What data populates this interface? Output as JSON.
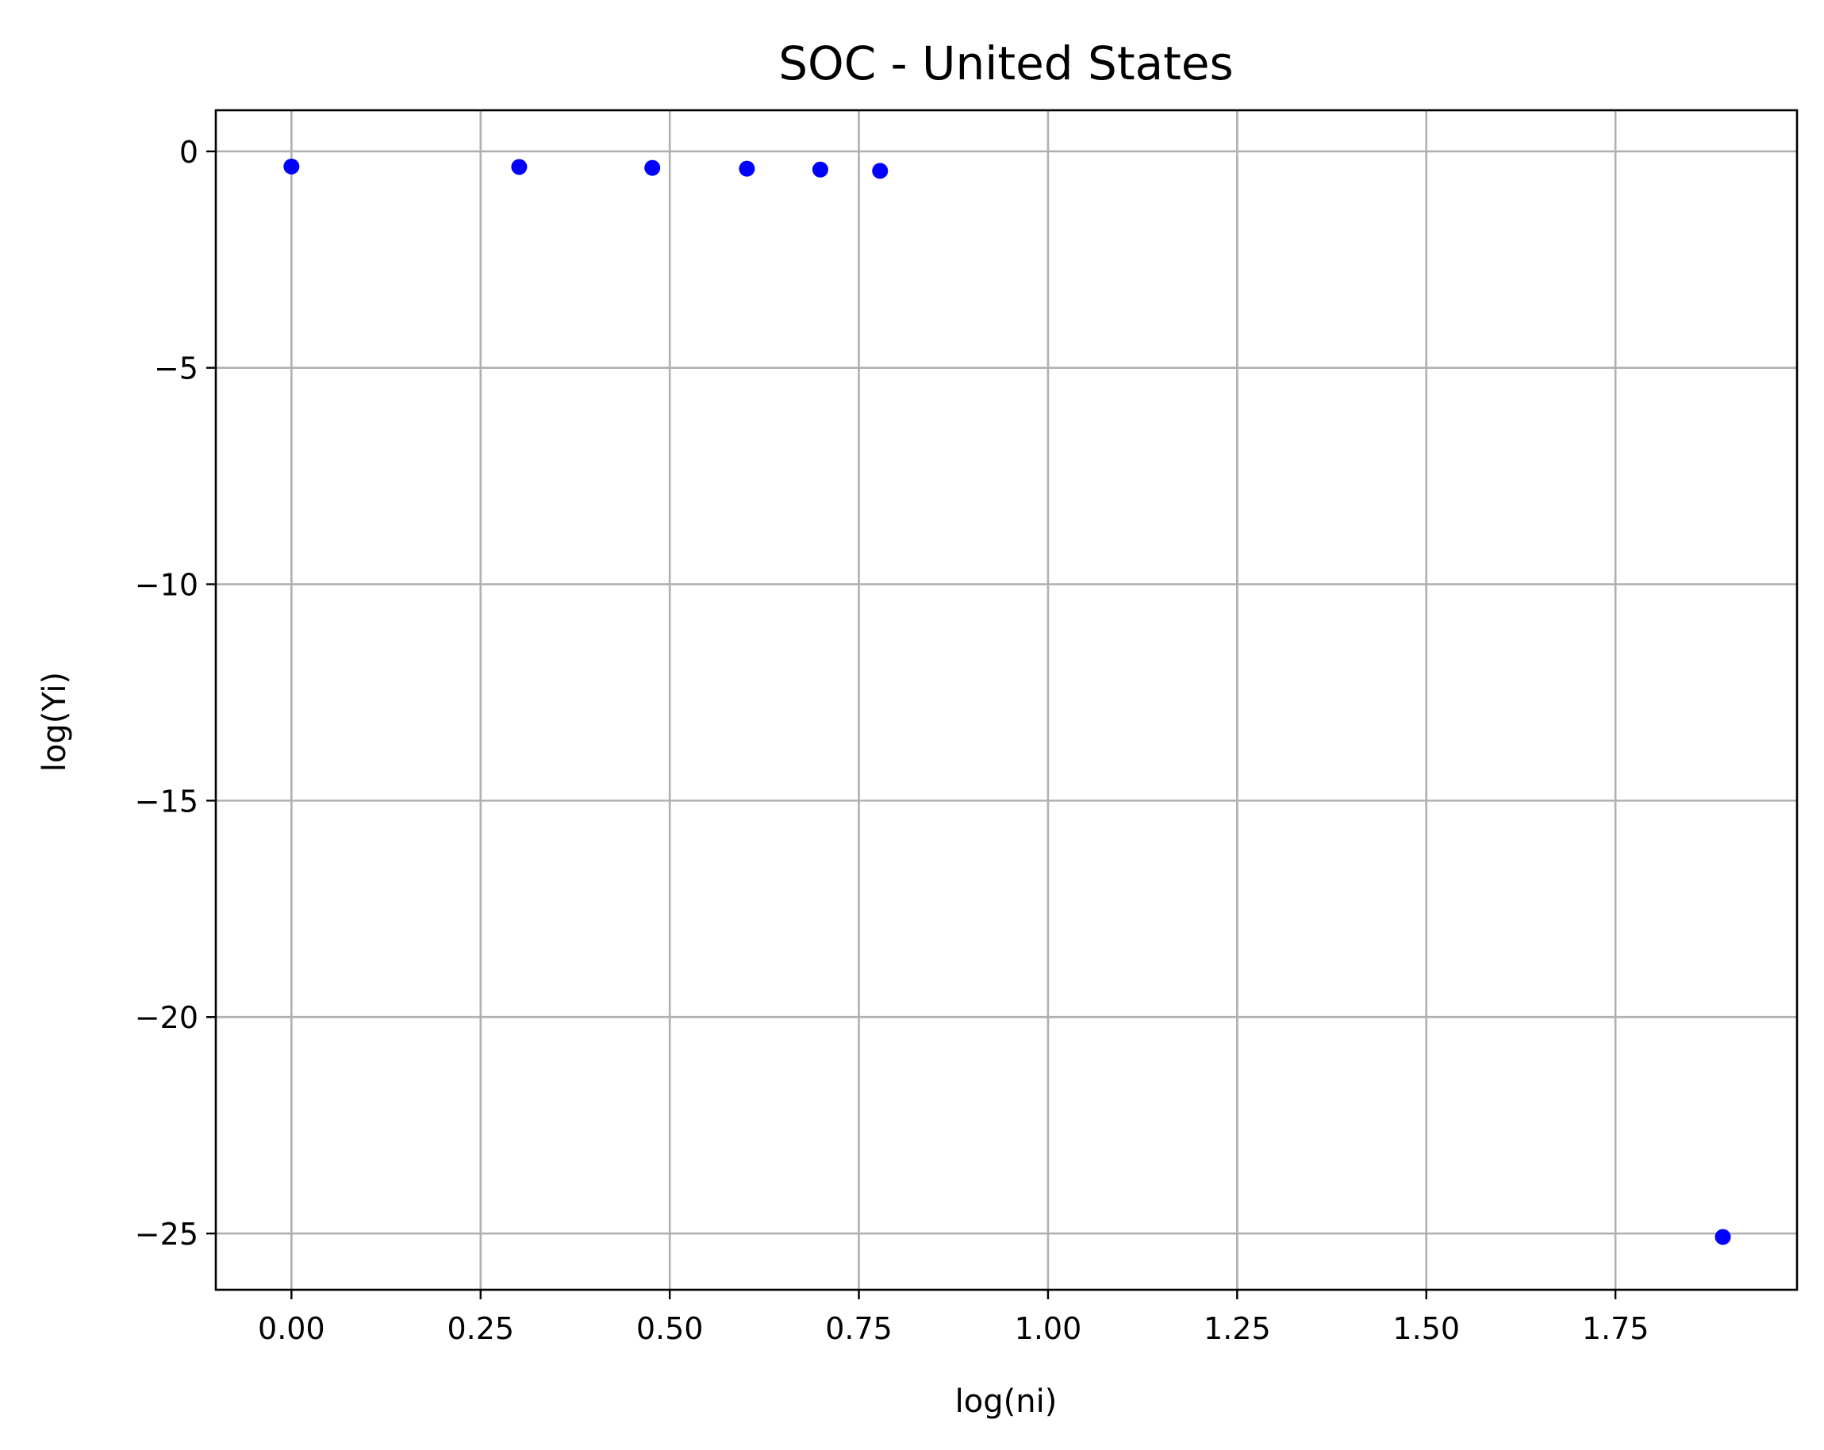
{
  "chart_data": {
    "type": "scatter",
    "title": "SOC - United States",
    "xlabel": "log(ni)",
    "ylabel": "log(Yi)",
    "xlim": [
      -0.1,
      1.99
    ],
    "ylim": [
      -26.3,
      0.95
    ],
    "xticks": [
      0.0,
      0.25,
      0.5,
      0.75,
      1.0,
      1.25,
      1.5,
      1.75
    ],
    "xtick_labels": [
      "0.00",
      "0.25",
      "0.50",
      "0.75",
      "1.00",
      "1.25",
      "1.50",
      "1.75"
    ],
    "yticks": [
      0,
      -5,
      -10,
      -15,
      -20,
      -25
    ],
    "ytick_labels": [
      "0",
      "−5",
      "−10",
      "−15",
      "−20",
      "−25"
    ],
    "grid": true,
    "legend": "none",
    "series": [
      {
        "color": "#0000ff",
        "points": [
          {
            "x": 0.0,
            "y": -0.35
          },
          {
            "x": 0.301,
            "y": -0.36
          },
          {
            "x": 0.477,
            "y": -0.38
          },
          {
            "x": 0.602,
            "y": -0.4
          },
          {
            "x": 0.699,
            "y": -0.42
          },
          {
            "x": 0.778,
            "y": -0.45
          },
          {
            "x": 1.892,
            "y": -25.08
          }
        ]
      }
    ]
  }
}
